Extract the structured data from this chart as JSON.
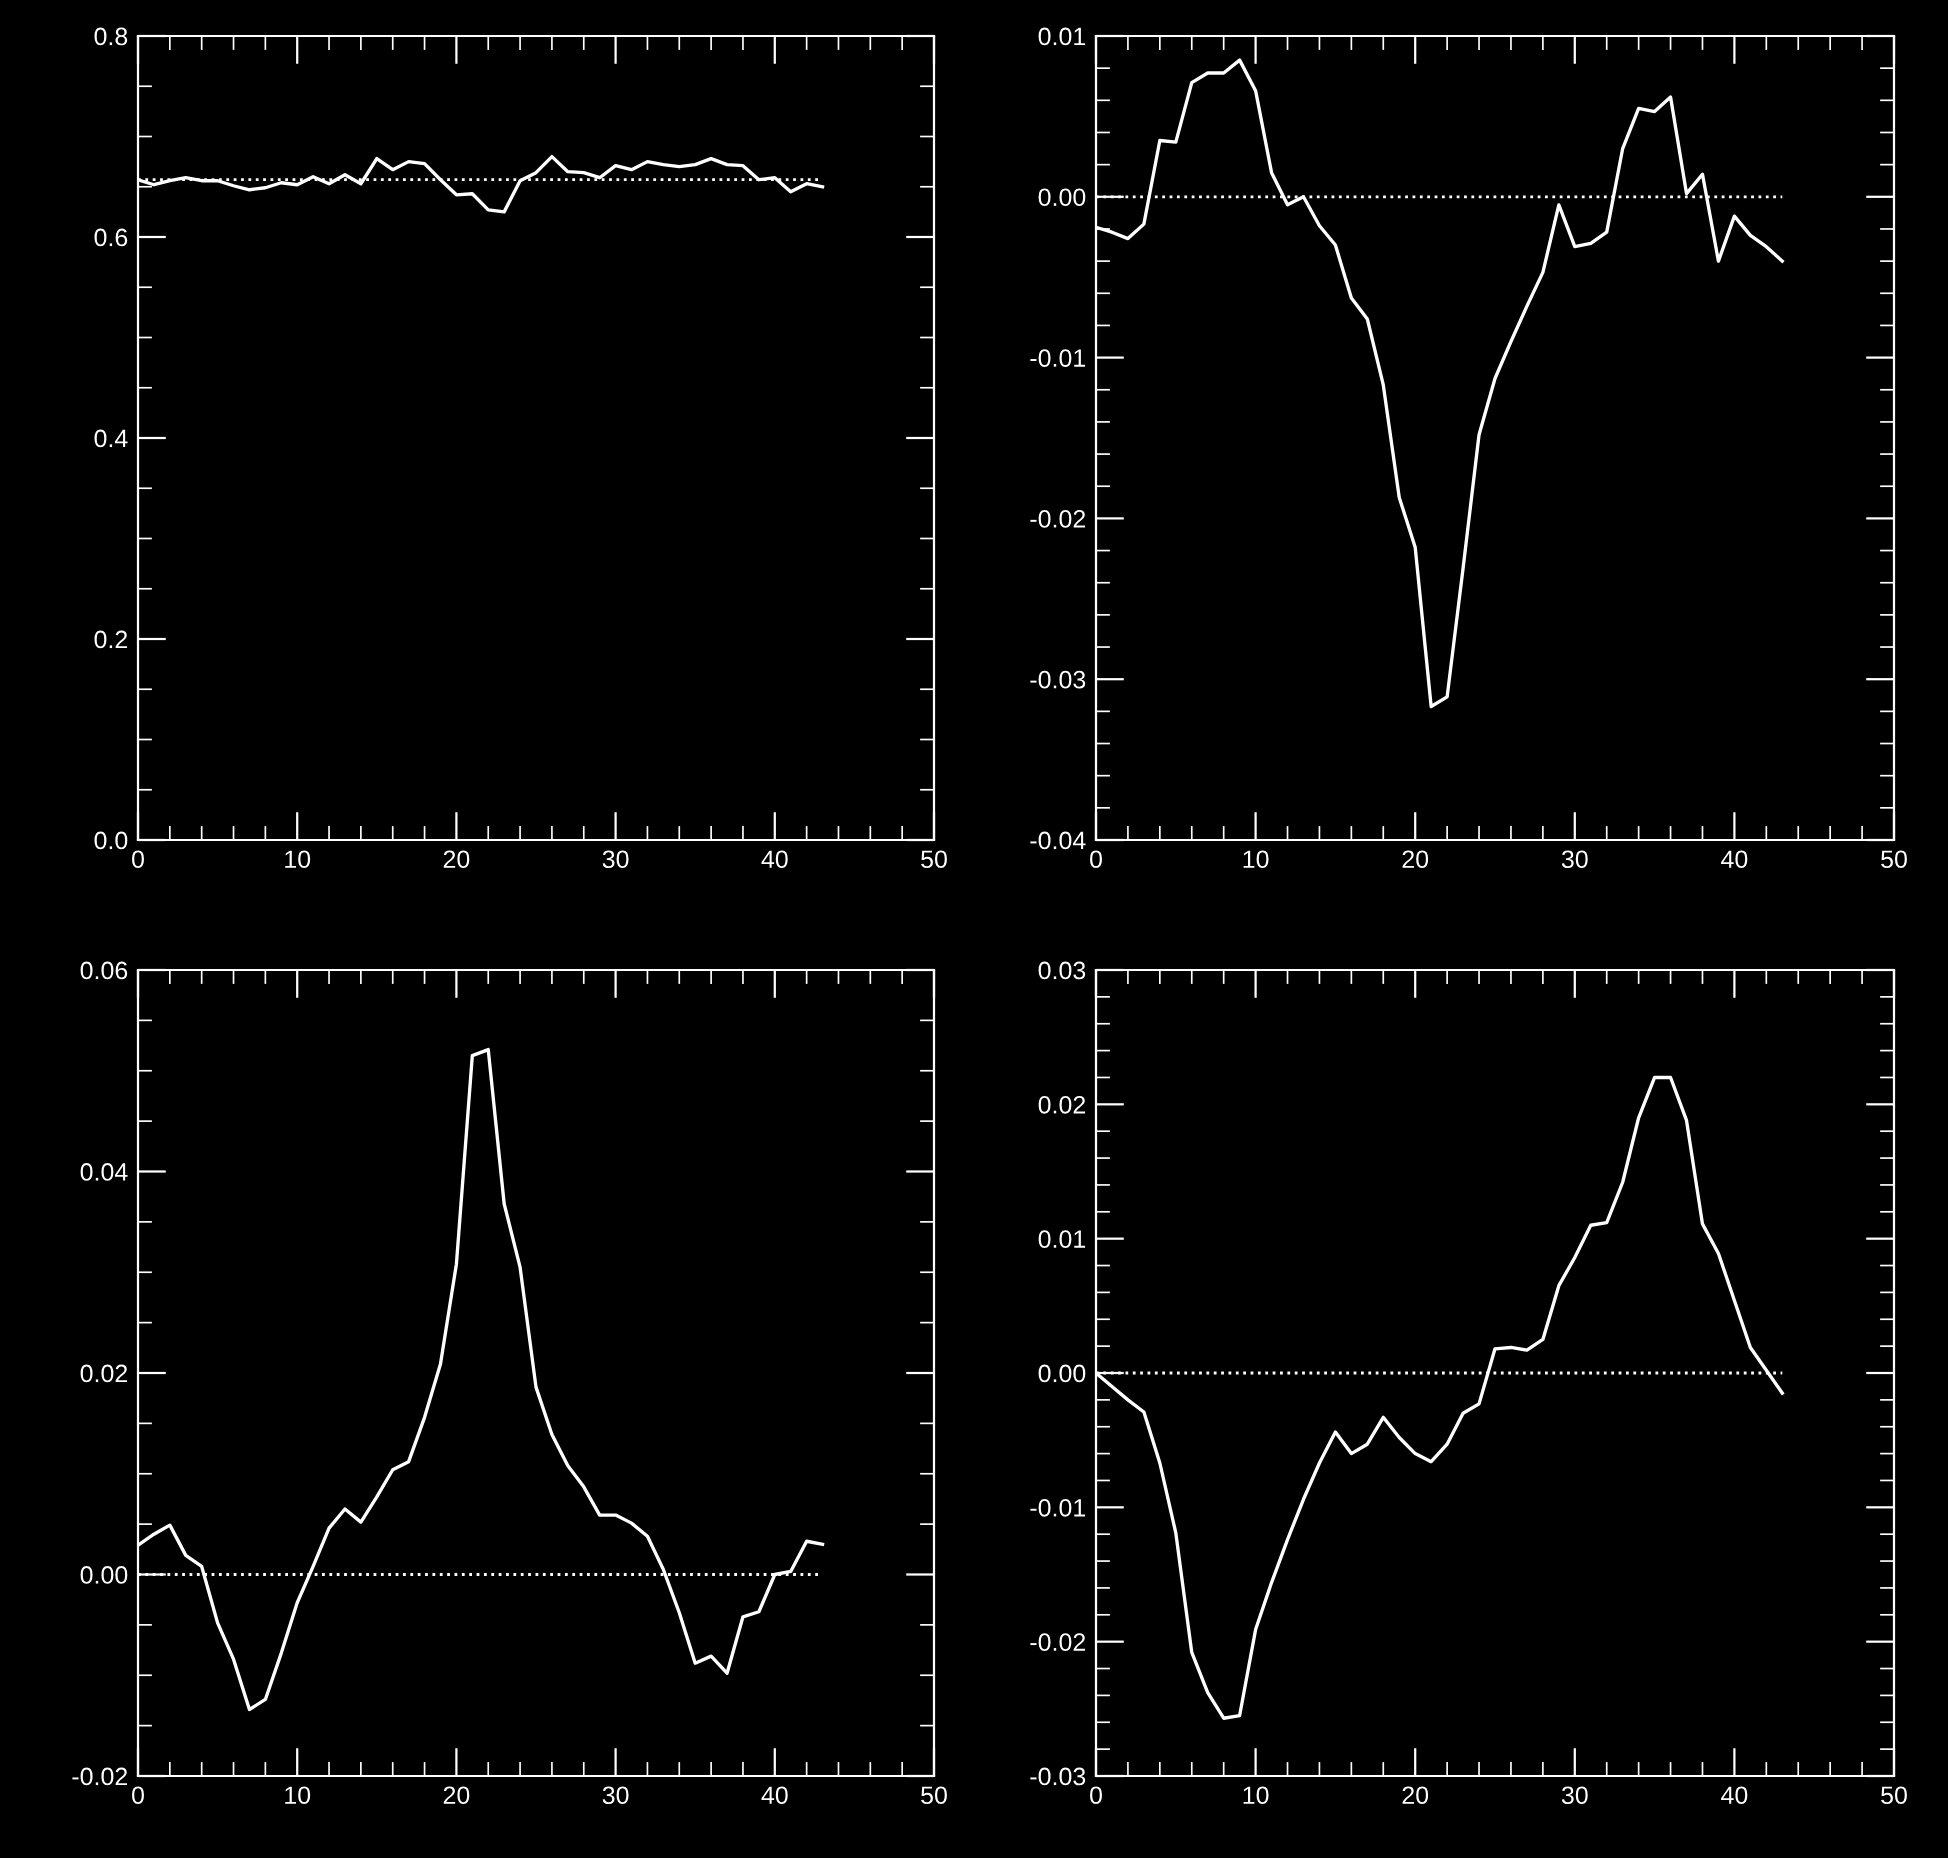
{
  "chart_data": [
    {
      "type": "line",
      "x": [
        0,
        1,
        2,
        3,
        4,
        5,
        6,
        7,
        8,
        9,
        10,
        11,
        12,
        13,
        14,
        15,
        16,
        17,
        18,
        19,
        20,
        21,
        22,
        23,
        24,
        25,
        26,
        27,
        28,
        29,
        30,
        31,
        32,
        33,
        34,
        35,
        36,
        37,
        38,
        39,
        40,
        41,
        42,
        43
      ],
      "series": [
        {
          "color": "#ffffff",
          "values": [
            0.657,
            0.652,
            0.656,
            0.659,
            0.656,
            0.656,
            0.651,
            0.647,
            0.649,
            0.654,
            0.652,
            0.66,
            0.653,
            0.662,
            0.653,
            0.678,
            0.667,
            0.675,
            0.673,
            0.657,
            0.642,
            0.643,
            0.627,
            0.625,
            0.656,
            0.664,
            0.68,
            0.665,
            0.664,
            0.659,
            0.671,
            0.667,
            0.675,
            0.672,
            0.67,
            0.672,
            0.678,
            0.672,
            0.671,
            0.657,
            0.659,
            0.645,
            0.653,
            0.65
          ]
        }
      ],
      "xlim": [
        0,
        50
      ],
      "xticks": [
        0,
        10,
        20,
        30,
        40,
        50
      ],
      "ylim": [
        0.0,
        0.8
      ],
      "yticks": [
        {
          "value": 0.0,
          "label": "0.0"
        },
        {
          "value": 0.2,
          "label": "0.2"
        },
        {
          "value": 0.4,
          "label": "0.4"
        },
        {
          "value": 0.6,
          "label": "0.6"
        },
        {
          "value": 0.8,
          "label": "0.8"
        }
      ],
      "ref_lines": [
        {
          "axis": "y",
          "value": 0.657,
          "color": "#ffffff",
          "line_style": "dotted"
        }
      ]
    },
    {
      "type": "line",
      "x": [
        0,
        1,
        2,
        3,
        4,
        5,
        6,
        7,
        8,
        9,
        10,
        11,
        12,
        13,
        14,
        15,
        16,
        17,
        18,
        19,
        20,
        21,
        22,
        23,
        24,
        25,
        26,
        27,
        28,
        29,
        30,
        31,
        32,
        33,
        34,
        35,
        36,
        37,
        38,
        39,
        40,
        41,
        42,
        43
      ],
      "series": [
        {
          "color": "#ffffff",
          "values": [
            -0.0019,
            -0.0022,
            -0.0026,
            -0.0017,
            0.0035,
            0.0034,
            0.0071,
            0.0077,
            0.0077,
            0.0085,
            0.0066,
            0.0015,
            -0.0005,
            0.0,
            -0.0018,
            -0.003,
            -0.0063,
            -0.0076,
            -0.0117,
            -0.0187,
            -0.0218,
            -0.0317,
            -0.0311,
            -0.0231,
            -0.0148,
            -0.0113,
            -0.009,
            -0.0068,
            -0.0047,
            -0.0005,
            -0.0031,
            -0.0029,
            -0.0022,
            0.003,
            0.0055,
            0.0053,
            0.0062,
            0.0002,
            0.0014,
            -0.004,
            -0.0012,
            -0.0024,
            -0.0031,
            -0.004
          ]
        }
      ],
      "xlim": [
        0,
        50
      ],
      "xticks": [
        0,
        10,
        20,
        30,
        40,
        50
      ],
      "ylim": [
        -0.04,
        0.01
      ],
      "yticks": [
        {
          "value": -0.04,
          "label": "-0.04"
        },
        {
          "value": -0.03,
          "label": "-0.03"
        },
        {
          "value": -0.02,
          "label": "-0.02"
        },
        {
          "value": -0.01,
          "label": "-0.01"
        },
        {
          "value": 0.0,
          "label": "0.00"
        },
        {
          "value": 0.01,
          "label": "0.01"
        }
      ],
      "ref_lines": [
        {
          "axis": "y",
          "value": 0.0,
          "color": "#ffffff",
          "line_style": "dotted"
        }
      ]
    },
    {
      "type": "line",
      "x": [
        0,
        1,
        2,
        3,
        4,
        5,
        6,
        7,
        8,
        9,
        10,
        11,
        12,
        13,
        14,
        15,
        16,
        17,
        18,
        19,
        20,
        21,
        22,
        23,
        24,
        25,
        26,
        27,
        28,
        29,
        30,
        31,
        32,
        33,
        34,
        35,
        36,
        37,
        38,
        39,
        40,
        41,
        42,
        43
      ],
      "series": [
        {
          "color": "#ffffff",
          "values": [
            0.0029,
            0.004,
            0.0049,
            0.0019,
            0.0008,
            -0.0048,
            -0.0084,
            -0.0134,
            -0.0124,
            -0.0078,
            -0.0028,
            0.0008,
            0.0046,
            0.0065,
            0.0052,
            0.0077,
            0.0104,
            0.0112,
            0.0156,
            0.0209,
            0.0308,
            0.0515,
            0.0521,
            0.0368,
            0.0305,
            0.0186,
            0.0139,
            0.0108,
            0.0087,
            0.0059,
            0.0059,
            0.0051,
            0.0038,
            0.0005,
            -0.0038,
            -0.0088,
            -0.0081,
            -0.0098,
            -0.0042,
            -0.0037,
            0.0,
            0.0003,
            0.0033,
            0.003
          ]
        }
      ],
      "xlim": [
        0,
        50
      ],
      "xticks": [
        0,
        10,
        20,
        30,
        40,
        50
      ],
      "ylim": [
        -0.02,
        0.06
      ],
      "yticks": [
        {
          "value": -0.02,
          "label": "-0.02"
        },
        {
          "value": 0.0,
          "label": "0.00"
        },
        {
          "value": 0.02,
          "label": "0.02"
        },
        {
          "value": 0.04,
          "label": "0.04"
        },
        {
          "value": 0.06,
          "label": "0.06"
        }
      ],
      "ref_lines": [
        {
          "axis": "y",
          "value": 0.0,
          "color": "#ffffff",
          "line_style": "dotted"
        }
      ]
    },
    {
      "type": "line",
      "x": [
        0,
        1,
        2,
        3,
        4,
        5,
        6,
        7,
        8,
        9,
        10,
        11,
        12,
        13,
        14,
        15,
        16,
        17,
        18,
        19,
        20,
        21,
        22,
        23,
        24,
        25,
        26,
        27,
        28,
        29,
        30,
        31,
        32,
        33,
        34,
        35,
        36,
        37,
        38,
        39,
        40,
        41,
        42,
        43
      ],
      "series": [
        {
          "color": "#ffffff",
          "values": [
            0.0,
            -0.001,
            -0.002,
            -0.0029,
            -0.0067,
            -0.0119,
            -0.0208,
            -0.0238,
            -0.0257,
            -0.0255,
            -0.0191,
            -0.0156,
            -0.0124,
            -0.0094,
            -0.0067,
            -0.0044,
            -0.006,
            -0.0053,
            -0.0033,
            -0.0048,
            -0.006,
            -0.0066,
            -0.0053,
            -0.003,
            -0.0023,
            0.0018,
            0.0019,
            0.0017,
            0.0025,
            0.0065,
            0.0086,
            0.011,
            0.0112,
            0.0142,
            0.019,
            0.022,
            0.022,
            0.0188,
            0.0111,
            0.0089,
            0.0054,
            0.0019,
            0.0002,
            -0.0015
          ]
        }
      ],
      "xlim": [
        0,
        50
      ],
      "xticks": [
        0,
        10,
        20,
        30,
        40,
        50
      ],
      "ylim": [
        -0.03,
        0.03
      ],
      "yticks": [
        {
          "value": -0.03,
          "label": "-0.03"
        },
        {
          "value": -0.02,
          "label": "-0.02"
        },
        {
          "value": -0.01,
          "label": "-0.01"
        },
        {
          "value": 0.0,
          "label": "0.00"
        },
        {
          "value": 0.01,
          "label": "0.01"
        },
        {
          "value": 0.02,
          "label": "0.02"
        },
        {
          "value": 0.03,
          "label": "0.03"
        }
      ],
      "ref_lines": [
        {
          "axis": "y",
          "value": 0.0,
          "color": "#ffffff",
          "line_style": "dotted"
        }
      ]
    }
  ]
}
